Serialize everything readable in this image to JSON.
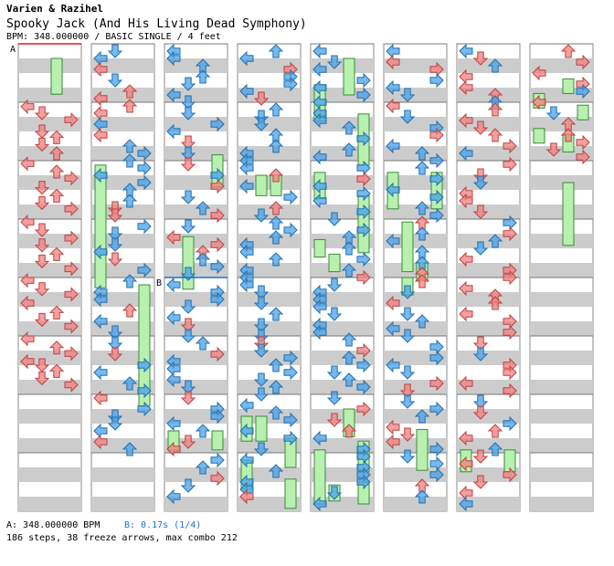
{
  "header": {
    "artist": "Varien & Razihel",
    "title": "Spooky Jack (And His Living Dead Symphony)",
    "info": "BPM: 348.000000 / BASIC SINGLE / 4 feet"
  },
  "footer": {
    "bpm_line": "A: 348.000000 BPM",
    "stop_line": "B: 0.17s (1/4)",
    "stats_line": "186 steps, 38 freeze arrows, max combo 212"
  },
  "markers": [
    {
      "label": "A",
      "column": 0,
      "measure": 0
    },
    {
      "label": "B",
      "column": 2,
      "measure": 4
    }
  ],
  "colors": {
    "red_arrow": "#f08080",
    "blue_arrow": "#4aa0e8",
    "freeze": "#b8f0b0",
    "stripe": "#cccccc"
  },
  "columns": [
    {
      "arrows": [],
      "freezes": [
        [
          0,
          2,
          1.0,
          3.45
        ]
      ],
      "arrows2": [
        {
          "lane": 0,
          "beat": 4.3
        },
        {
          "lane": 1,
          "beat": 4.75
        },
        {
          "lane": 3,
          "beat": 5.2
        },
        {
          "lane": 1,
          "beat": 6.0
        },
        {
          "lane": 2,
          "beat": 6.4
        },
        {
          "lane": 1,
          "beat": 6.9
        },
        {
          "lane": 2,
          "beat": 7.5
        },
        {
          "lane": 0,
          "beat": 8.2
        },
        {
          "lane": 2,
          "beat": 8.75
        },
        {
          "lane": 3,
          "beat": 9.2
        },
        {
          "lane": 1,
          "beat": 9.85
        },
        {
          "lane": 2,
          "beat": 10.4
        },
        {
          "lane": 1,
          "beat": 10.9
        },
        {
          "lane": 3,
          "beat": 11.3
        },
        {
          "lane": 0,
          "beat": 12.2
        },
        {
          "lane": 1,
          "beat": 12.75
        },
        {
          "lane": 3,
          "beat": 13.3
        },
        {
          "lane": 1,
          "beat": 13.8
        },
        {
          "lane": 2,
          "beat": 14.4
        },
        {
          "lane": 1,
          "beat": 14.9
        },
        {
          "lane": 3,
          "beat": 15.4
        },
        {
          "lane": 0,
          "beat": 16.2
        },
        {
          "lane": 1,
          "beat": 16.8
        },
        {
          "lane": 3,
          "beat": 17.15
        },
        {
          "lane": 0,
          "beat": 17.75
        },
        {
          "lane": 2,
          "beat": 18.4
        },
        {
          "lane": 1,
          "beat": 18.9
        },
        {
          "lane": 3,
          "beat": 19.35
        },
        {
          "lane": 0,
          "beat": 20.2
        },
        {
          "lane": 2,
          "beat": 20.8
        },
        {
          "lane": 3,
          "beat": 21.2
        },
        {
          "lane": 0,
          "beat": 21.75
        },
        {
          "lane": 1,
          "beat": 22.0
        },
        {
          "lane": 2,
          "beat": 22.4
        },
        {
          "lane": 1,
          "beat": 22.9
        },
        {
          "lane": 3,
          "beat": 23.35
        }
      ]
    }
  ]
}
